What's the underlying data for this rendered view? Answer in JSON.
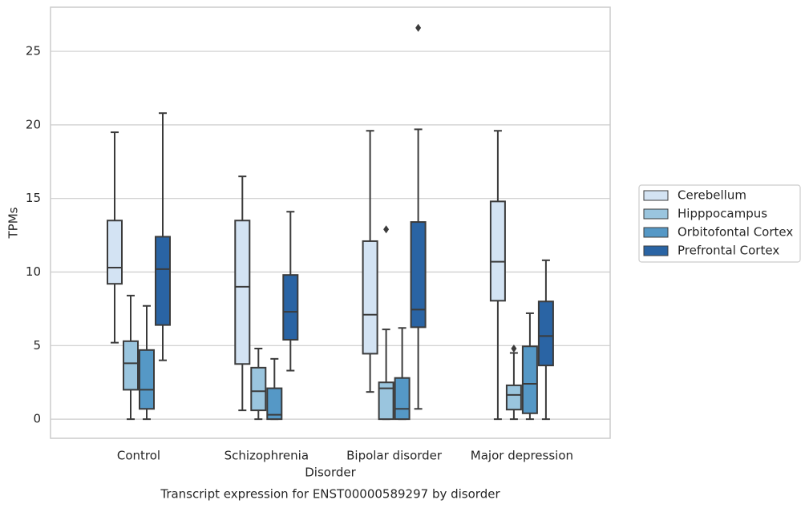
{
  "chart_data": {
    "type": "box",
    "title": "Transcript expression for ENST00000589297 by disorder",
    "x_label": "Disorder",
    "y_label": "TPMs",
    "categories": [
      "Control",
      "Schizophrenia",
      "Bipolar disorder",
      "Major depression"
    ],
    "ylim": [
      -1.3,
      28
    ],
    "yticks": [
      0,
      5,
      10,
      15,
      20,
      25
    ],
    "grid": true,
    "legend": "right",
    "series": [
      {
        "name": "Cerebellum",
        "color": "#d3e3f3",
        "boxes": [
          {
            "low": 5.2,
            "q1": 9.2,
            "median": 10.3,
            "q3": 13.5,
            "high": 19.5,
            "outliers": []
          },
          {
            "low": 0.6,
            "q1": 3.75,
            "median": 9.0,
            "q3": 13.5,
            "high": 16.5,
            "outliers": []
          },
          {
            "low": 1.85,
            "q1": 4.45,
            "median": 7.1,
            "q3": 12.1,
            "high": 19.6,
            "outliers": []
          },
          {
            "low": 0,
            "q1": 8.05,
            "median": 10.7,
            "q3": 14.8,
            "high": 19.6,
            "outliers": []
          }
        ]
      },
      {
        "name": "Hipppocampus",
        "color": "#9ac5de",
        "boxes": [
          {
            "low": 0,
            "q1": 2.0,
            "median": 3.8,
            "q3": 5.3,
            "high": 8.4,
            "outliers": []
          },
          {
            "low": 0,
            "q1": 0.6,
            "median": 1.9,
            "q3": 3.5,
            "high": 4.8,
            "outliers": []
          },
          {
            "low": 0,
            "q1": 0,
            "median": 2.1,
            "q3": 2.5,
            "high": 6.1,
            "outliers": [
              12.9
            ]
          },
          {
            "low": 0,
            "q1": 0.65,
            "median": 1.65,
            "q3": 2.3,
            "high": 4.5,
            "outliers": [
              4.8
            ]
          }
        ]
      },
      {
        "name": "Orbitofontal Cortex",
        "color": "#5598c6",
        "boxes": [
          {
            "low": 0,
            "q1": 0.7,
            "median": 2.0,
            "q3": 4.7,
            "high": 7.7,
            "outliers": []
          },
          {
            "low": 0,
            "q1": 0,
            "median": 0.3,
            "q3": 2.1,
            "high": 4.1,
            "outliers": []
          },
          {
            "low": 0,
            "q1": 0,
            "median": 0.7,
            "q3": 2.8,
            "high": 6.2,
            "outliers": []
          },
          {
            "low": 0,
            "q1": 0.4,
            "median": 2.4,
            "q3": 4.95,
            "high": 7.2,
            "outliers": []
          }
        ]
      },
      {
        "name": "Prefrontal Cortex",
        "color": "#2a64a4",
        "boxes": [
          {
            "low": 4.0,
            "q1": 6.4,
            "median": 10.2,
            "q3": 12.4,
            "high": 20.8,
            "outliers": []
          },
          {
            "low": 3.3,
            "q1": 5.4,
            "median": 7.3,
            "q3": 9.8,
            "high": 14.1,
            "outliers": []
          },
          {
            "low": 0.7,
            "q1": 6.25,
            "median": 7.45,
            "q3": 13.4,
            "high": 19.7,
            "outliers": [
              26.6
            ]
          },
          {
            "low": 0,
            "q1": 3.65,
            "median": 5.65,
            "q3": 8.0,
            "high": 10.8,
            "outliers": []
          }
        ]
      }
    ]
  }
}
